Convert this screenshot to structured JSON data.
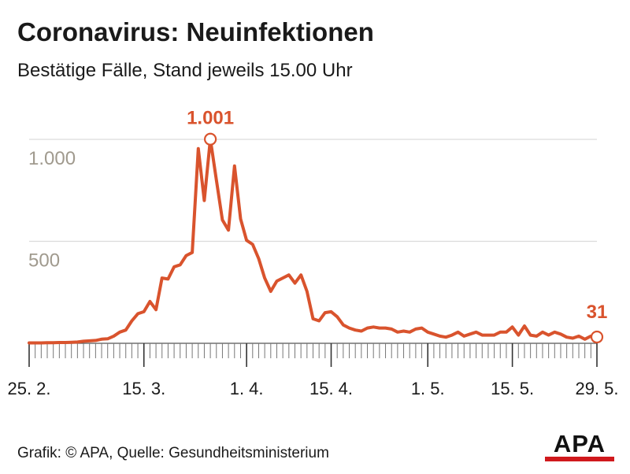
{
  "title": "Coronavirus: Neuinfektionen",
  "subtitle": "Bestätige Fälle, Stand jeweils 15.00 Uhr",
  "footer": "Grafik: © APA, Quelle: Gesundheitsministerium",
  "logo": "APA",
  "colors": {
    "line": "#d9532d",
    "grid": "#dcdcdc",
    "tick_label": "#a09a8e",
    "axis": "#555555",
    "logo_accent": "#d0191d"
  },
  "chart_data": {
    "type": "line",
    "title": "Coronavirus: Neuinfektionen",
    "subtitle": "Bestätige Fälle, Stand jeweils 15.00 Uhr",
    "xlabel": "",
    "ylabel": "",
    "ylim": [
      0,
      1000
    ],
    "grid": true,
    "yticks": [
      500,
      1000
    ],
    "ytick_labels": [
      "500",
      "1.000"
    ],
    "xtick_days": [
      0,
      19,
      36,
      50,
      66,
      80,
      94
    ],
    "xtick_labels": [
      "25. 2.",
      "15. 3.",
      "1. 4.",
      "15. 4.",
      "1. 5.",
      "15. 5.",
      "29. 5."
    ],
    "dates": [
      "25.2.",
      "26.2.",
      "27.2.",
      "28.2.",
      "29.2.",
      "1.3.",
      "2.3.",
      "3.3.",
      "4.3.",
      "5.3.",
      "6.3.",
      "7.3.",
      "8.3.",
      "9.3.",
      "10.3.",
      "11.3.",
      "12.3.",
      "13.3.",
      "14.3.",
      "15.3.",
      "16.3.",
      "17.3.",
      "18.3.",
      "19.3.",
      "20.3.",
      "21.3.",
      "22.3.",
      "23.3.",
      "24.3.",
      "25.3.",
      "26.3.",
      "27.3.",
      "28.3.",
      "29.3.",
      "30.3.",
      "31.3.",
      "1.4.",
      "2.4.",
      "3.4.",
      "4.4.",
      "5.4.",
      "6.4.",
      "7.4.",
      "8.4.",
      "9.4.",
      "10.4.",
      "11.4.",
      "12.4.",
      "13.4.",
      "14.4.",
      "15.4.",
      "16.4.",
      "17.4.",
      "18.4.",
      "19.4.",
      "20.4.",
      "21.4.",
      "22.4.",
      "23.4.",
      "24.4.",
      "25.4.",
      "26.4.",
      "27.4.",
      "28.4.",
      "29.4.",
      "30.4.",
      "1.5.",
      "2.5.",
      "3.5.",
      "4.5.",
      "5.5.",
      "6.5.",
      "7.5.",
      "8.5.",
      "9.5.",
      "10.5.",
      "11.5.",
      "12.5.",
      "13.5.",
      "14.5.",
      "15.5.",
      "16.5.",
      "17.5.",
      "18.5.",
      "19.5.",
      "20.5.",
      "21.5.",
      "22.5.",
      "23.5.",
      "24.5.",
      "25.5.",
      "26.5.",
      "27.5.",
      "28.5.",
      "29.5."
    ],
    "values": [
      2,
      2,
      2,
      3,
      3,
      4,
      4,
      5,
      6,
      10,
      12,
      14,
      20,
      22,
      35,
      55,
      65,
      110,
      145,
      155,
      205,
      165,
      320,
      315,
      375,
      385,
      430,
      445,
      955,
      700,
      1001,
      800,
      605,
      555,
      870,
      610,
      505,
      485,
      415,
      320,
      255,
      305,
      320,
      335,
      295,
      335,
      255,
      120,
      110,
      150,
      155,
      130,
      90,
      75,
      65,
      60,
      75,
      80,
      75,
      75,
      70,
      55,
      60,
      55,
      70,
      75,
      55,
      45,
      35,
      30,
      40,
      55,
      35,
      45,
      55,
      40,
      40,
      40,
      55,
      55,
      80,
      40,
      85,
      40,
      35,
      55,
      40,
      55,
      45,
      30,
      25,
      35,
      20,
      35,
      31
    ],
    "highlights": [
      {
        "index": 30,
        "label": "1.001"
      },
      {
        "index": 94,
        "label": "31"
      }
    ]
  }
}
